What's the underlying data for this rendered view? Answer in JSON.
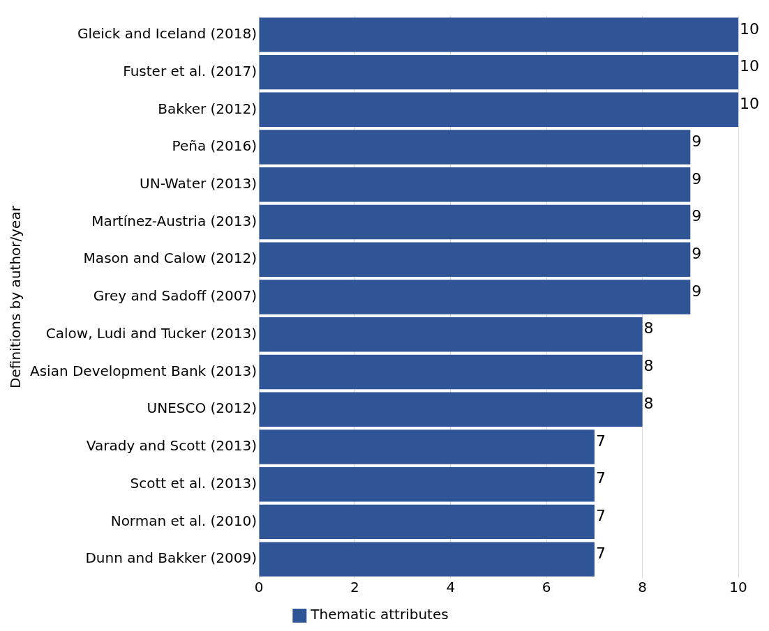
{
  "chart_data": {
    "type": "bar",
    "orientation": "horizontal",
    "ylabel": "Definitions by author/year",
    "categories": [
      "Gleick and Iceland (2018)",
      "Fuster et al. (2017)",
      "Bakker (2012)",
      "Peña (2016)",
      "UN-Water (2013)",
      "Martínez-Austria (2013)",
      "Mason and Calow (2012)",
      "Grey and Sadoff (2007)",
      "Calow, Ludi and Tucker (2013)",
      "Asian Development Bank (2013)",
      "UNESCO (2012)",
      "Varady and Scott (2013)",
      "Scott et al. (2013)",
      "Norman et al. (2010)",
      "Dunn and Bakker (2009)"
    ],
    "series": [
      {
        "name": "Thematic attributes",
        "color": "#2f5597",
        "values": [
          10,
          10,
          10,
          9,
          9,
          9,
          9,
          9,
          8,
          8,
          8,
          7,
          7,
          7,
          7
        ]
      }
    ],
    "xlim": [
      0,
      10
    ],
    "xticks": [
      0,
      2,
      4,
      6,
      8,
      10
    ],
    "grid": "x",
    "legend": "bottom",
    "data_labels": true
  }
}
